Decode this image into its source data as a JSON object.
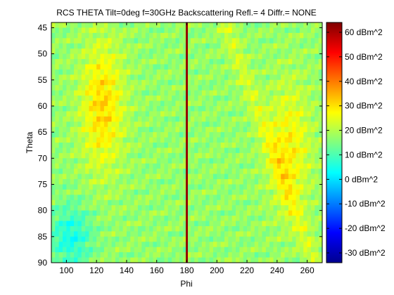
{
  "chart_data": {
    "type": "heatmap",
    "title": "RCS THETA Tilt=0deg f=30GHz Backscattering Refl.= 4 Diffr.= NONE",
    "xlabel": "Phi",
    "ylabel": "Theta",
    "xlim": [
      90,
      270
    ],
    "ylim": [
      44,
      90
    ],
    "y_reversed": true,
    "x_ticks": [
      "100",
      "120",
      "140",
      "160",
      "180",
      "200",
      "220",
      "240",
      "260"
    ],
    "y_ticks": [
      "45",
      "50",
      "55",
      "60",
      "65",
      "70",
      "75",
      "80",
      "85",
      "90"
    ],
    "colorbar": {
      "range": [
        -34,
        64
      ],
      "colormap": "jet",
      "unit": "dBm^2",
      "tick_values": [
        60,
        50,
        40,
        30,
        20,
        10,
        0,
        -10,
        -20,
        -30
      ],
      "tick_labels": [
        "60 dBm^2",
        "50 dBm^2",
        "40 dBm^2",
        "30 dBm^2",
        "20 dBm^2",
        "10 dBm^2",
        "0 dBm^2",
        "-10 dBm^2",
        "-20 dBm^2",
        "-30 dBm^2"
      ]
    },
    "grid": false,
    "field_features": [
      {
        "kind": "background",
        "phi": [
          90,
          270
        ],
        "theta": [
          44,
          90
        ],
        "value": 17
      },
      {
        "kind": "lobe",
        "phi": 124,
        "theta": 60,
        "value": 31
      },
      {
        "kind": "lobe",
        "phi": 248,
        "theta": 68,
        "value": 28
      },
      {
        "kind": "ridge",
        "phi": 180,
        "theta": [
          44,
          90
        ],
        "value": 62
      },
      {
        "kind": "low-region",
        "phi": 103,
        "theta": 85,
        "value": 5
      }
    ]
  }
}
